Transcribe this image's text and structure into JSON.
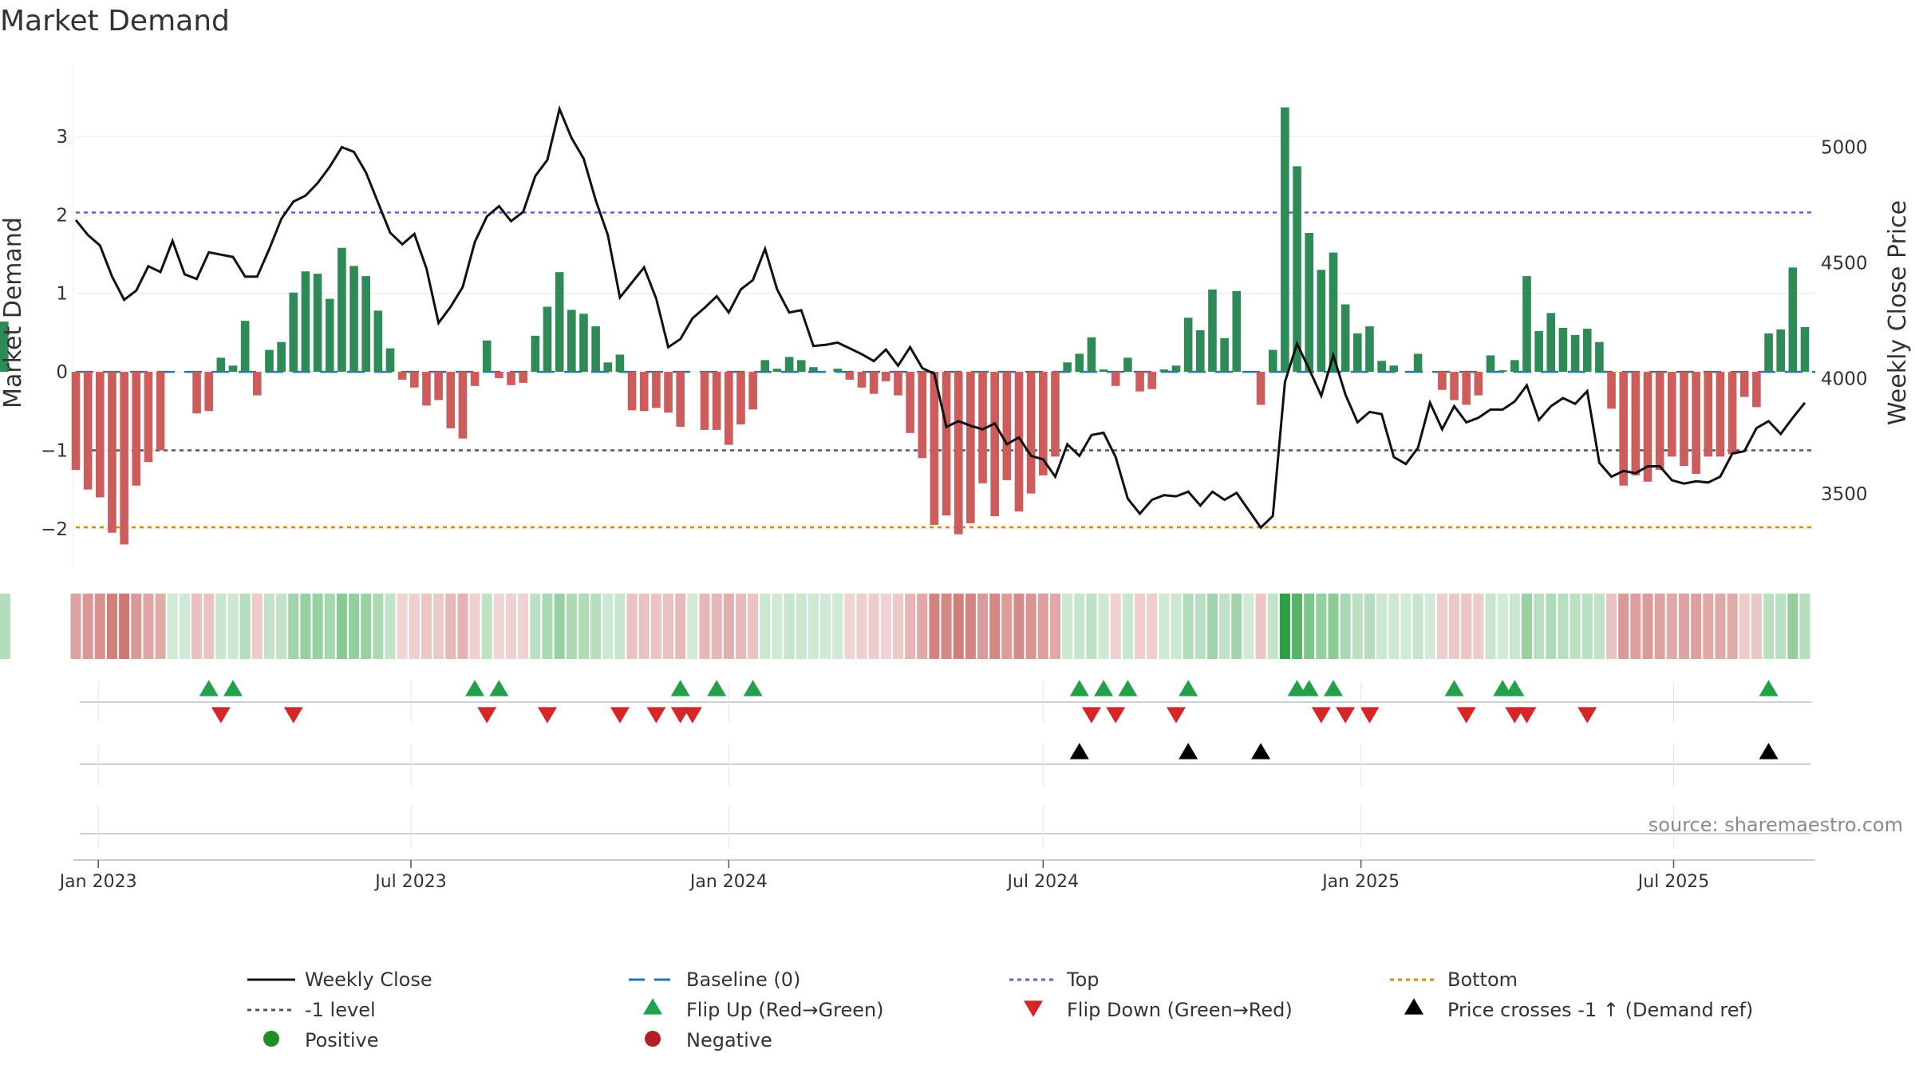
{
  "chart_data": {
    "type": "bar+line",
    "title": "Market Demand",
    "ylabel_left": "Market Demand",
    "ylabel_right": "Weekly Close Price",
    "ylim_left": [
      -2.5,
      3.6
    ],
    "ylim_right": [
      3180,
      5250
    ],
    "yticks_left": [
      3,
      2,
      1,
      0,
      -1,
      -2
    ],
    "yticks_left_labels": [
      "3",
      "2",
      "1",
      "0",
      "−1",
      "−2"
    ],
    "yticks_right": [
      5000,
      4500,
      4000,
      3500
    ],
    "yticks_right_labels": [
      "5000",
      "4500",
      "4000",
      "3500"
    ],
    "x_dates": [
      "2022-12-19",
      "2022-12-26",
      "2023-01-02",
      "2023-01-09",
      "2023-01-16",
      "2023-01-23",
      "2023-01-30",
      "2023-02-06",
      "2023-02-13",
      "2023-02-20",
      "2023-02-27",
      "2023-03-06",
      "2023-03-13",
      "2023-03-20",
      "2023-03-27",
      "2023-04-03",
      "2023-04-10",
      "2023-04-17",
      "2023-04-24",
      "2023-05-01",
      "2023-05-08",
      "2023-05-15",
      "2023-05-22",
      "2023-05-29",
      "2023-06-05",
      "2023-06-12",
      "2023-06-19",
      "2023-06-26",
      "2023-07-03",
      "2023-07-10",
      "2023-07-17",
      "2023-07-24",
      "2023-07-31",
      "2023-08-07",
      "2023-08-14",
      "2023-08-21",
      "2023-08-28",
      "2023-09-04",
      "2023-09-11",
      "2023-09-18",
      "2023-09-25",
      "2023-10-02",
      "2023-10-09",
      "2023-10-16",
      "2023-10-23",
      "2023-10-30",
      "2023-11-06",
      "2023-11-13",
      "2023-11-20",
      "2023-11-27",
      "2023-12-04",
      "2023-12-11",
      "2023-12-18",
      "2023-12-25",
      "2024-01-01",
      "2024-01-08",
      "2024-01-15",
      "2024-01-22",
      "2024-01-29",
      "2024-02-05",
      "2024-02-12",
      "2024-02-19",
      "2024-02-26",
      "2024-03-04",
      "2024-03-11",
      "2024-03-18",
      "2024-03-25",
      "2024-04-01",
      "2024-04-08",
      "2024-04-15",
      "2024-04-22",
      "2024-04-29",
      "2024-05-06",
      "2024-05-13",
      "2024-05-20",
      "2024-05-27",
      "2024-06-03",
      "2024-06-10",
      "2024-06-17",
      "2024-06-24",
      "2024-07-01",
      "2024-07-08",
      "2024-07-15",
      "2024-07-22",
      "2024-07-29",
      "2024-08-05",
      "2024-08-12",
      "2024-08-19",
      "2024-08-26",
      "2024-09-02",
      "2024-09-09",
      "2024-09-16",
      "2024-09-23",
      "2024-09-30",
      "2024-10-07",
      "2024-10-14",
      "2024-10-21",
      "2024-10-28",
      "2024-11-04",
      "2024-11-11",
      "2024-11-18",
      "2024-11-25",
      "2024-12-02",
      "2024-12-09",
      "2024-12-16",
      "2024-12-23",
      "2024-12-30",
      "2025-01-06",
      "2025-01-13",
      "2025-01-20",
      "2025-01-27",
      "2025-02-03",
      "2025-02-10",
      "2025-02-17",
      "2025-02-24",
      "2025-03-03",
      "2025-03-10",
      "2025-03-17",
      "2025-03-24",
      "2025-03-31",
      "2025-04-07",
      "2025-04-14",
      "2025-04-21",
      "2025-04-28",
      "2025-05-05",
      "2025-05-12",
      "2025-05-19",
      "2025-05-26",
      "2025-06-02",
      "2025-06-09",
      "2025-06-16",
      "2025-06-23",
      "2025-06-30",
      "2025-07-07",
      "2025-07-14",
      "2025-07-21",
      "2025-07-28",
      "2025-08-04",
      "2025-08-11",
      "2025-08-18",
      "2025-08-25",
      "2025-09-01",
      "2025-09-08",
      "2025-09-15"
    ],
    "x_start": "2022-12-19",
    "x_end": "2025-09-21",
    "x_ticks": [
      {
        "date": "2023-01-01",
        "label": "Jan 2023"
      },
      {
        "date": "2023-07-01",
        "label": "Jul 2023"
      },
      {
        "date": "2024-01-01",
        "label": "Jan 2024"
      },
      {
        "date": "2024-07-01",
        "label": "Jul 2024"
      },
      {
        "date": "2025-01-01",
        "label": "Jan 2025"
      },
      {
        "date": "2025-07-01",
        "label": "Jul 2025"
      }
    ],
    "market_demand": [
      -1.25,
      -1.5,
      -1.6,
      -2.05,
      -2.2,
      -1.45,
      -1.15,
      -1.0,
      0,
      0,
      -0.53,
      -0.5,
      0.18,
      0.08,
      0.65,
      -0.3,
      0.28,
      0.38,
      1.01,
      1.28,
      1.25,
      0.93,
      1.58,
      1.35,
      1.22,
      0.78,
      0.3,
      -0.1,
      -0.2,
      -0.43,
      -0.36,
      -0.72,
      -0.85,
      -0.18,
      0.4,
      -0.08,
      -0.17,
      -0.14,
      0.46,
      0.83,
      1.27,
      0.79,
      0.74,
      0.58,
      0.12,
      0.22,
      -0.49,
      -0.5,
      -0.46,
      -0.52,
      -0.7,
      0,
      -0.74,
      -0.74,
      -0.93,
      -0.67,
      -0.48,
      0.15,
      0.04,
      0.19,
      0.15,
      0.06,
      0,
      0.04,
      -0.1,
      -0.2,
      -0.28,
      -0.12,
      -0.3,
      -0.78,
      -1.1,
      -1.95,
      -1.83,
      -2.07,
      -1.93,
      -1.42,
      -1.84,
      -1.38,
      -1.78,
      -1.55,
      -1.32,
      -1.08,
      0.12,
      0.23,
      0.44,
      0.03,
      -0.18,
      0.18,
      -0.25,
      -0.22,
      0.03,
      0.08,
      0.69,
      0.53,
      1.05,
      0.43,
      1.03,
      0,
      -0.42,
      0.28,
      3.37,
      2.62,
      1.77,
      1.3,
      1.52,
      0.86,
      0.49,
      0.58,
      0.14,
      0.08,
      0,
      0.23,
      0,
      -0.23,
      -0.36,
      -0.42,
      -0.3,
      0.21,
      0.02,
      0.15,
      1.22,
      0.52,
      0.75,
      0.56,
      0.47,
      0.55,
      0.38,
      -0.47,
      -1.45,
      -1.32,
      -1.4,
      -1.25,
      -1.08,
      -1.2,
      -1.3,
      -1.08,
      -1.08,
      -1.05,
      -0.32,
      -0.45,
      0.49,
      0.54,
      1.33,
      0.57,
      0.64
    ],
    "weekly_close": [
      4685,
      4620,
      4575,
      4440,
      4340,
      4380,
      4485,
      4460,
      4595,
      4450,
      4430,
      4545,
      4535,
      4525,
      4440,
      4440,
      4560,
      4690,
      4765,
      4790,
      4845,
      4915,
      5000,
      4980,
      4890,
      4760,
      4630,
      4580,
      4625,
      4475,
      4240,
      4310,
      4395,
      4590,
      4700,
      4745,
      4680,
      4720,
      4875,
      4945,
      5165,
      5040,
      4950,
      4770,
      4620,
      4350,
      4415,
      4480,
      4345,
      4135,
      4170,
      4260,
      4305,
      4355,
      4285,
      4385,
      4425,
      4560,
      4385,
      4285,
      4295,
      4140,
      4145,
      4155,
      4130,
      4105,
      4075,
      4125,
      4055,
      4135,
      4045,
      4020,
      3790,
      3815,
      3795,
      3780,
      3805,
      3715,
      3745,
      3665,
      3650,
      3575,
      3715,
      3665,
      3755,
      3765,
      3660,
      3480,
      3415,
      3475,
      3495,
      3490,
      3510,
      3450,
      3510,
      3475,
      3505,
      3430,
      3355,
      3405,
      3985,
      4150,
      4040,
      3925,
      4100,
      3930,
      3810,
      3855,
      3845,
      3660,
      3630,
      3700,
      3895,
      3780,
      3880,
      3810,
      3830,
      3865,
      3865,
      3900,
      3970,
      3820,
      3880,
      3915,
      3890,
      3945,
      3635,
      3575,
      3600,
      3590,
      3620,
      3620,
      3560,
      3545,
      3555,
      3550,
      3575,
      3675,
      3685,
      3785,
      3815,
      3760,
      3830,
      3895
    ],
    "reference_lines": [
      {
        "name": "Baseline (0)",
        "value": 0,
        "color": "#1f77b4",
        "style": "dashed"
      },
      {
        "name": "Top",
        "value": 2.03,
        "color": "#6a5acd",
        "style": "dotted"
      },
      {
        "name": "-1 level",
        "value": -1.0,
        "color": "#555555",
        "style": "dotted"
      },
      {
        "name": "Bottom",
        "value": -1.98,
        "color": "#e08a00",
        "style": "dotted"
      }
    ],
    "flip_up_weeks": [
      11,
      13,
      33,
      35,
      50,
      53,
      56,
      83,
      85,
      87,
      92,
      101,
      102,
      104,
      114,
      118,
      119,
      140
    ],
    "flip_down_weeks": [
      12,
      18,
      34,
      39,
      45,
      48,
      50,
      51,
      84,
      86,
      91,
      103,
      105,
      107,
      115,
      119,
      120,
      125
    ],
    "price_cross_weeks": [
      83,
      92,
      98,
      140
    ],
    "legend": [
      {
        "label": "Weekly Close",
        "marker": "line",
        "color": "#111111"
      },
      {
        "label": "Baseline (0)",
        "marker": "dash",
        "color": "#1f77b4"
      },
      {
        "label": "Top",
        "marker": "dot",
        "color": "#6a5acd"
      },
      {
        "label": "Bottom",
        "marker": "dot",
        "color": "#e08a00"
      },
      {
        "label": "-1 level",
        "marker": "dot",
        "color": "#555555"
      },
      {
        "label": "Flip Up (Red→Green)",
        "marker": "triangle-up",
        "color": "#23a04a"
      },
      {
        "label": "Flip Down (Green→Red)",
        "marker": "triangle-down",
        "color": "#d62728"
      },
      {
        "label": "Price crosses -1 ↑ (Demand ref)",
        "marker": "triangle-up",
        "color": "#000000"
      },
      {
        "label": "Positive",
        "marker": "circle",
        "color": "#228b22"
      },
      {
        "label": "Negative",
        "marker": "circle",
        "color": "#b22222"
      }
    ],
    "source": "source: sharemaestro.com",
    "colors": {
      "positive_bar": "#2e8b57",
      "negative_bar": "#cd5c5c",
      "close_line": "#111111",
      "grid": "#e6e6e6"
    }
  }
}
